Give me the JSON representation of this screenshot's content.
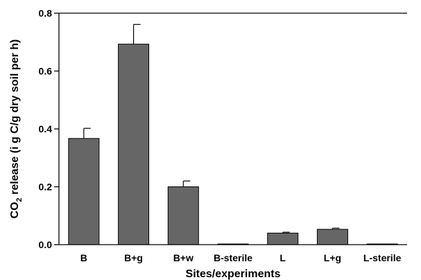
{
  "chart_data": {
    "type": "bar",
    "categories": [
      "B",
      "B+g",
      "B+w",
      "B-sterile",
      "L",
      "L+g",
      "L-sterile"
    ],
    "values": [
      0.367,
      0.693,
      0.2,
      0.002,
      0.04,
      0.053,
      0.001
    ],
    "errors": [
      0.035,
      0.068,
      0.02,
      0.0,
      0.003,
      0.004,
      0.0
    ],
    "xlabel": "Sites/experiments",
    "ylabel_main": "CO",
    "ylabel_sub": "2",
    "ylabel_rest": " release (i g C/g dry soil per h)",
    "ylim": [
      0,
      0.8
    ],
    "yticks": [
      "0.0",
      "0.2",
      "0.4",
      "0.6",
      "0.8"
    ],
    "grid": false,
    "bar_color": "#666666"
  }
}
